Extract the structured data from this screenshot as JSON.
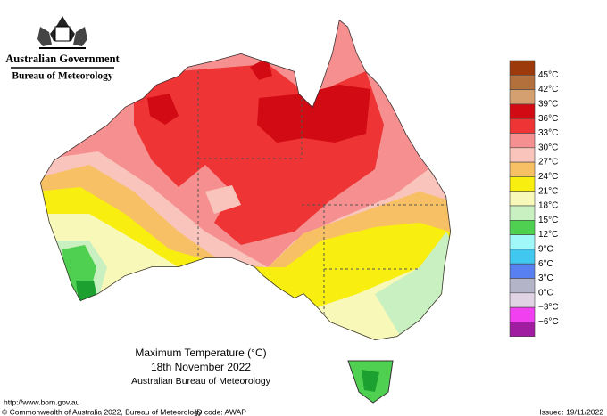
{
  "header": {
    "government": "Australian Government",
    "agency": "Bureau of Meteorology"
  },
  "legend": {
    "colors": [
      "#9c3a0c",
      "#b4703c",
      "#d4a070",
      "#d20a14",
      "#ee3434",
      "#f69090",
      "#f8c4bc",
      "#f8c064",
      "#f8ee10",
      "#f8f8b8",
      "#c8f0c0",
      "#50d050",
      "#a0f8f8",
      "#40c8f0",
      "#5880f0",
      "#b4b4c8",
      "#e0d4e4",
      "#f040f0",
      "#a01ca0"
    ],
    "labels": [
      "45°C",
      "42°C",
      "39°C",
      "36°C",
      "33°C",
      "30°C",
      "27°C",
      "24°C",
      "21°C",
      "18°C",
      "15°C",
      "12°C",
      "9°C",
      "6°C",
      "3°C",
      "0°C",
      "−3°C",
      "−6°C"
    ]
  },
  "title": {
    "line1": "Maximum Temperature (°C)",
    "line2": "18th November 2022",
    "line3": "Australian Bureau of Meteorology"
  },
  "footer": {
    "url": "http://www.bom.gov.au",
    "copyright": "© Commonwealth of Australia 2022, Bureau of Meteorology",
    "id_code": "ID code: AWAP",
    "issued": "Issued: 19/11/2022"
  }
}
